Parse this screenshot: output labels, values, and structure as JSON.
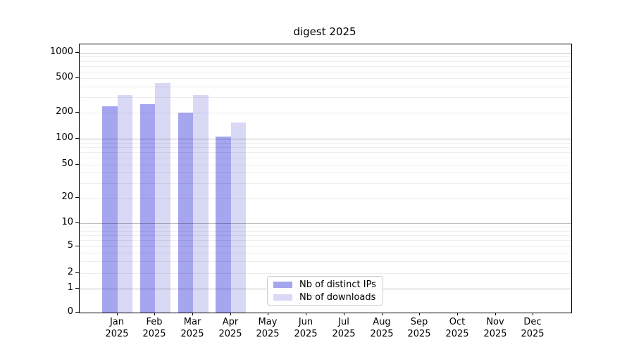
{
  "title": "digest 2025",
  "chart_data": {
    "type": "bar",
    "title": "digest 2025",
    "categories": [
      "Jan",
      "Feb",
      "Mar",
      "Apr",
      "May",
      "Jun",
      "Jul",
      "Aug",
      "Sep",
      "Oct",
      "Nov",
      "Dec"
    ],
    "category_year": "2025",
    "series": [
      {
        "name": "Nb of distinct IPs",
        "color": "#a5a5f0",
        "values": [
          235,
          250,
          200,
          105,
          null,
          null,
          null,
          null,
          null,
          null,
          null,
          null
        ]
      },
      {
        "name": "Nb of downloads",
        "color": "#d9d9f6",
        "values": [
          320,
          435,
          320,
          155,
          null,
          null,
          null,
          null,
          null,
          null,
          null,
          null
        ]
      }
    ],
    "y_axis": {
      "scale": "log-with-zero",
      "ticks": [
        0,
        1,
        2,
        5,
        10,
        20,
        50,
        100,
        200,
        500,
        1000
      ],
      "ylim": [
        0,
        1270
      ]
    },
    "x_axis": {
      "label_line2": "2025"
    },
    "legend": {
      "position": "bottom-center",
      "entries": [
        "Nb of distinct IPs",
        "Nb of downloads"
      ]
    },
    "grid": "major-and-minor, drawn above bars",
    "colors": {
      "distinct_ips": "#a5a5f0",
      "downloads": "#d9d9f6",
      "spine": "#000000",
      "grid_major": "#bfbfbf",
      "grid_minor": "#ededed"
    }
  }
}
